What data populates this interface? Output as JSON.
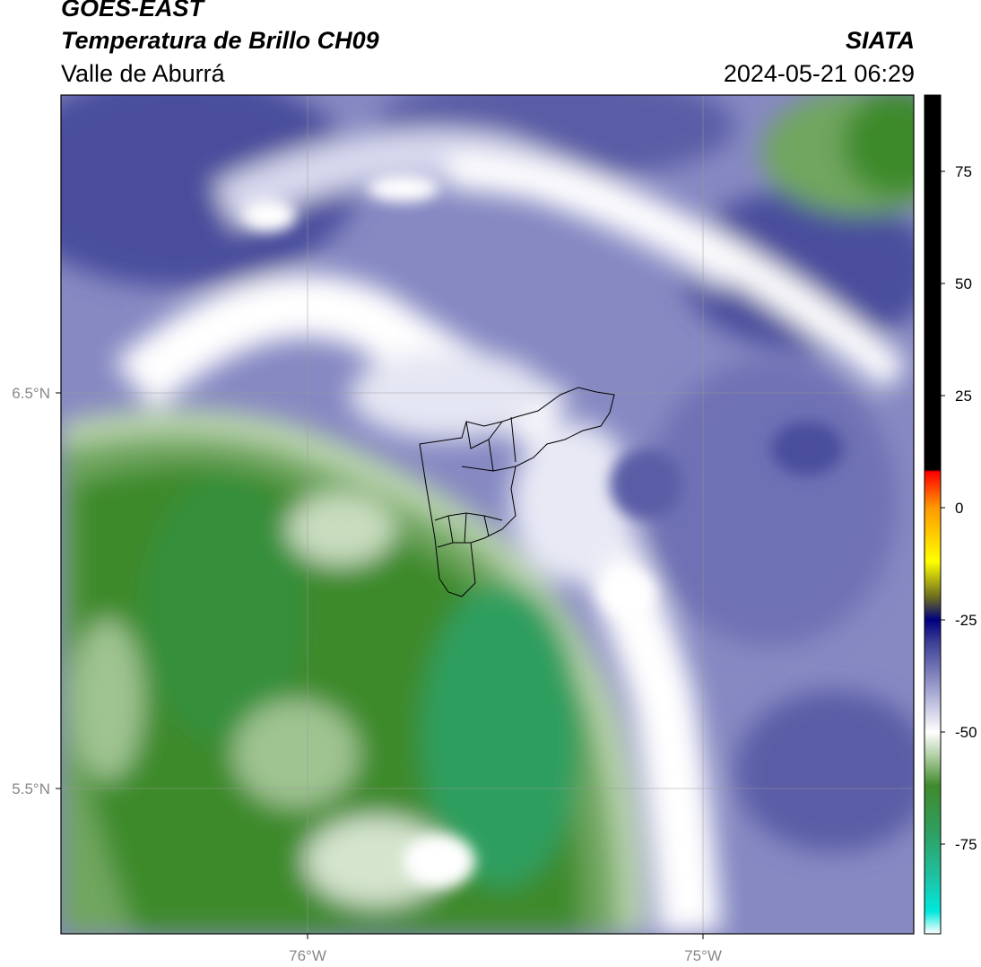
{
  "header": {
    "satellite": "GOES-EAST",
    "product": "Temperatura de Brillo CH09",
    "region": "Valle de Aburrá",
    "organization": "SIATA",
    "timestamp": "2024-05-21 06:29"
  },
  "map": {
    "lat_labels": [
      "6.5°N",
      "5.5°N"
    ],
    "lon_labels": [
      "76°W",
      "75°W"
    ],
    "colors": {
      "dark_purple": "#3c3f94",
      "mid_purple": "#8689c2",
      "light_purple": "#c7c9e3",
      "white": "#ffffff",
      "pale_green": "#b9d4ad",
      "mid_green": "#6fa65e",
      "green": "#3d8a2c",
      "teal_green": "#2f9e5e"
    }
  },
  "colorbar": {
    "ticks": [
      "75",
      "50",
      "25",
      "0",
      "-25",
      "-50",
      "-75"
    ],
    "range": [
      -95,
      92
    ],
    "stops": [
      {
        "value": -95,
        "color": "#ffffff"
      },
      {
        "value": -90,
        "color": "#00e8dc"
      },
      {
        "value": -82,
        "color": "#20c0a0"
      },
      {
        "value": -72,
        "color": "#2f9e5e"
      },
      {
        "value": -62,
        "color": "#3f8a2c"
      },
      {
        "value": -55,
        "color": "#b5d2aa"
      },
      {
        "value": -50,
        "color": "#ffffff"
      },
      {
        "value": -40,
        "color": "#9b9dcc"
      },
      {
        "value": -30,
        "color": "#3c3f94"
      },
      {
        "value": -25,
        "color": "#000080"
      },
      {
        "value": -20,
        "color": "#6b6b20"
      },
      {
        "value": -12,
        "color": "#ffff00"
      },
      {
        "value": 0,
        "color": "#ff9900"
      },
      {
        "value": 8,
        "color": "#ff0000"
      },
      {
        "value": 8.5,
        "color": "#000000"
      },
      {
        "value": 92,
        "color": "#000000"
      }
    ]
  }
}
